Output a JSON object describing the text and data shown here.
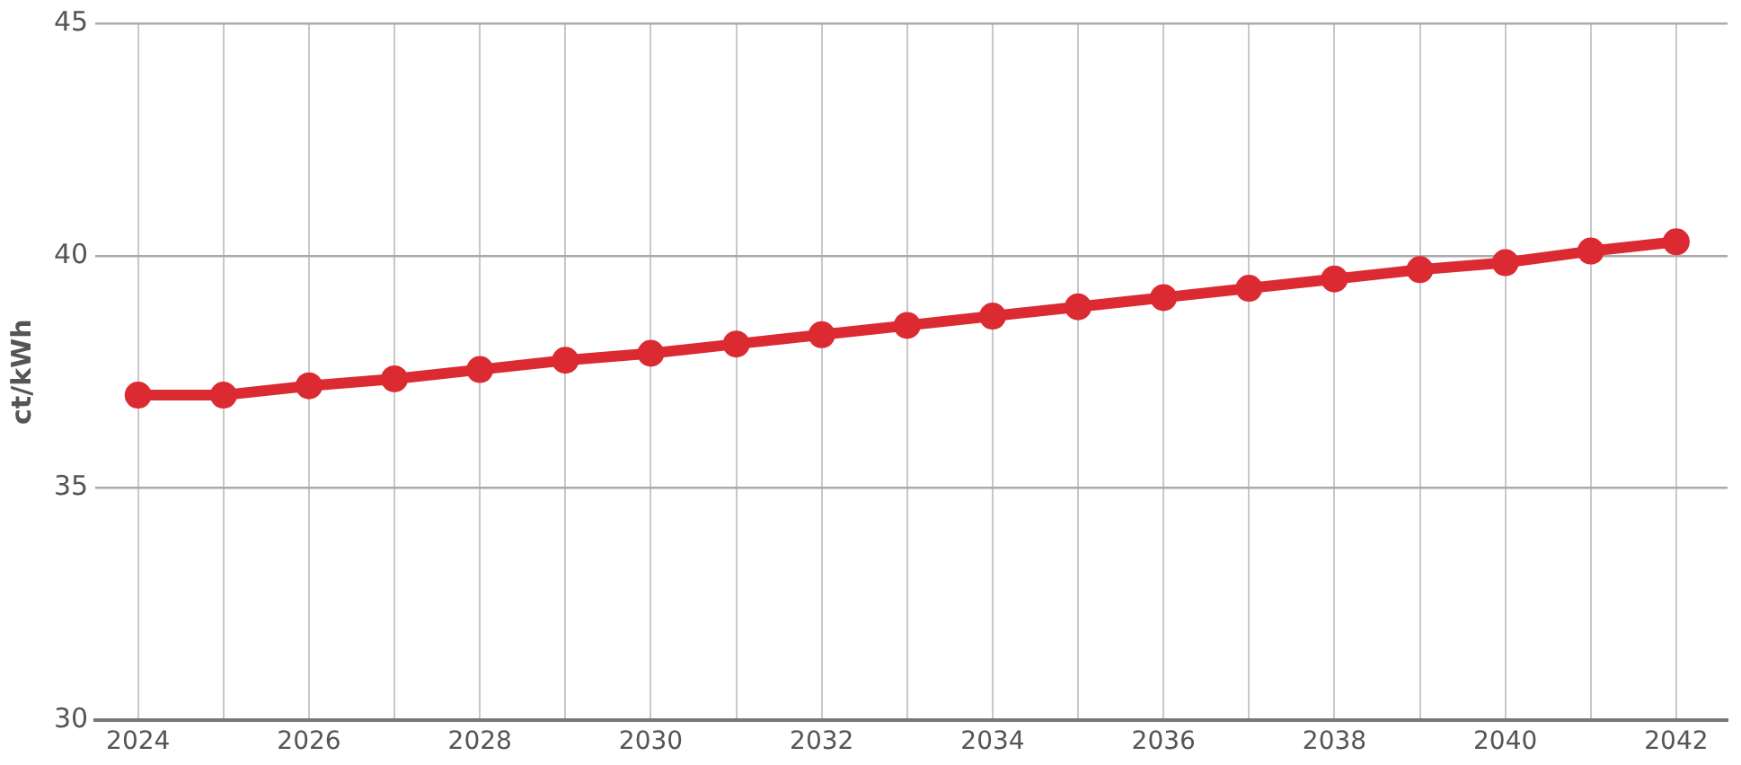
{
  "chart_data": {
    "type": "line",
    "ylabel": "ct/kWh",
    "x": [
      2024,
      2025,
      2026,
      2027,
      2028,
      2029,
      2030,
      2031,
      2032,
      2033,
      2034,
      2035,
      2036,
      2037,
      2038,
      2039,
      2040,
      2041,
      2042
    ],
    "series": [
      {
        "color": "#dc2a32",
        "values": [
          37.0,
          37.0,
          37.2,
          37.35,
          37.55,
          37.75,
          37.9,
          38.1,
          38.3,
          38.5,
          38.7,
          38.9,
          39.1,
          39.3,
          39.5,
          39.7,
          39.85,
          40.1,
          40.3
        ]
      }
    ],
    "xlim": [
      2023.5,
      2042.6
    ],
    "xticks": [
      2024,
      {
        "value": 2025,
        "label": null
      },
      2026,
      {
        "value": 2027,
        "label": null
      },
      2028,
      {
        "value": 2029,
        "label": null
      },
      2030,
      {
        "value": 2031,
        "label": null
      },
      2032,
      {
        "value": 2033,
        "label": null
      },
      2034,
      {
        "value": 2035,
        "label": null
      },
      2036,
      {
        "value": 2037,
        "label": null
      },
      2038,
      {
        "value": 2039,
        "label": null
      },
      2040,
      {
        "value": 2041,
        "label": null
      },
      2042
    ],
    "ylim": [
      30,
      45
    ],
    "yticks": [
      30,
      35,
      40,
      45
    ],
    "grid": true,
    "legend": false,
    "marker": "circle",
    "line_style": "solid"
  }
}
